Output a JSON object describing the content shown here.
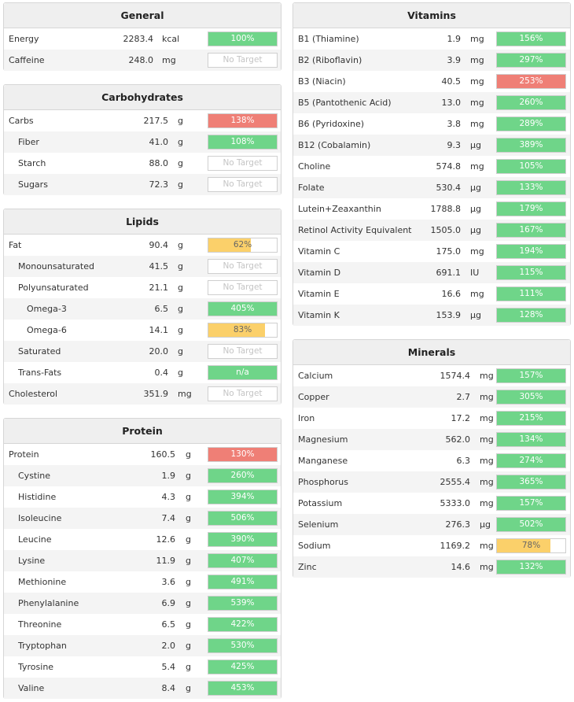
{
  "colors": {
    "green": "#6fd589",
    "red": "#ef7f76",
    "yellow": "#fbd06a"
  },
  "panels": [
    {
      "title": "General",
      "rows": [
        {
          "name": "Energy",
          "value": "2283.4",
          "unit": "kcal",
          "pct": "100%",
          "fill": 1.0,
          "color": "green"
        },
        {
          "name": "Caffeine",
          "value": "248.0",
          "unit": "mg",
          "pct": "No Target",
          "fill": 0,
          "color": "none"
        }
      ]
    },
    {
      "title": "Carbohydrates",
      "rows": [
        {
          "name": "Carbs",
          "value": "217.5",
          "unit": "g",
          "pct": "138%",
          "fill": 1.0,
          "color": "red"
        },
        {
          "name": "Fiber",
          "value": "41.0",
          "unit": "g",
          "pct": "108%",
          "fill": 1.0,
          "color": "green",
          "indent": 1
        },
        {
          "name": "Starch",
          "value": "88.0",
          "unit": "g",
          "pct": "No Target",
          "fill": 0,
          "color": "none",
          "indent": 1
        },
        {
          "name": "Sugars",
          "value": "72.3",
          "unit": "g",
          "pct": "No Target",
          "fill": 0,
          "color": "none",
          "indent": 1
        }
      ]
    },
    {
      "title": "Lipids",
      "rows": [
        {
          "name": "Fat",
          "value": "90.4",
          "unit": "g",
          "pct": "62%",
          "fill": 0.62,
          "color": "yellow"
        },
        {
          "name": "Monounsaturated",
          "value": "41.5",
          "unit": "g",
          "pct": "No Target",
          "fill": 0,
          "color": "none",
          "indent": 1
        },
        {
          "name": "Polyunsaturated",
          "value": "21.1",
          "unit": "g",
          "pct": "No Target",
          "fill": 0,
          "color": "none",
          "indent": 1
        },
        {
          "name": "Omega-3",
          "value": "6.5",
          "unit": "g",
          "pct": "405%",
          "fill": 1.0,
          "color": "green",
          "indent": 2
        },
        {
          "name": "Omega-6",
          "value": "14.1",
          "unit": "g",
          "pct": "83%",
          "fill": 0.83,
          "color": "yellow",
          "indent": 2
        },
        {
          "name": "Saturated",
          "value": "20.0",
          "unit": "g",
          "pct": "No Target",
          "fill": 0,
          "color": "none",
          "indent": 1
        },
        {
          "name": "Trans-Fats",
          "value": "0.4",
          "unit": "g",
          "pct": "n/a",
          "fill": 1.0,
          "color": "green",
          "indent": 1
        },
        {
          "name": "Cholesterol",
          "value": "351.9",
          "unit": "mg",
          "pct": "No Target",
          "fill": 0,
          "color": "none"
        }
      ]
    },
    {
      "title": "Protein",
      "rows": [
        {
          "name": "Protein",
          "value": "160.5",
          "unit": "g",
          "pct": "130%",
          "fill": 1.0,
          "color": "red"
        },
        {
          "name": "Cystine",
          "value": "1.9",
          "unit": "g",
          "pct": "260%",
          "fill": 1.0,
          "color": "green",
          "indent": 1
        },
        {
          "name": "Histidine",
          "value": "4.3",
          "unit": "g",
          "pct": "394%",
          "fill": 1.0,
          "color": "green",
          "indent": 1
        },
        {
          "name": "Isoleucine",
          "value": "7.4",
          "unit": "g",
          "pct": "506%",
          "fill": 1.0,
          "color": "green",
          "indent": 1
        },
        {
          "name": "Leucine",
          "value": "12.6",
          "unit": "g",
          "pct": "390%",
          "fill": 1.0,
          "color": "green",
          "indent": 1
        },
        {
          "name": "Lysine",
          "value": "11.9",
          "unit": "g",
          "pct": "407%",
          "fill": 1.0,
          "color": "green",
          "indent": 1
        },
        {
          "name": "Methionine",
          "value": "3.6",
          "unit": "g",
          "pct": "491%",
          "fill": 1.0,
          "color": "green",
          "indent": 1
        },
        {
          "name": "Phenylalanine",
          "value": "6.9",
          "unit": "g",
          "pct": "539%",
          "fill": 1.0,
          "color": "green",
          "indent": 1
        },
        {
          "name": "Threonine",
          "value": "6.5",
          "unit": "g",
          "pct": "422%",
          "fill": 1.0,
          "color": "green",
          "indent": 1
        },
        {
          "name": "Tryptophan",
          "value": "2.0",
          "unit": "g",
          "pct": "530%",
          "fill": 1.0,
          "color": "green",
          "indent": 1
        },
        {
          "name": "Tyrosine",
          "value": "5.4",
          "unit": "g",
          "pct": "425%",
          "fill": 1.0,
          "color": "green",
          "indent": 1
        },
        {
          "name": "Valine",
          "value": "8.4",
          "unit": "g",
          "pct": "453%",
          "fill": 1.0,
          "color": "green",
          "indent": 1
        }
      ]
    },
    {
      "title": "Vitamins",
      "rows": [
        {
          "name": "B1 (Thiamine)",
          "value": "1.9",
          "unit": "mg",
          "pct": "156%",
          "fill": 1.0,
          "color": "green"
        },
        {
          "name": "B2 (Riboflavin)",
          "value": "3.9",
          "unit": "mg",
          "pct": "297%",
          "fill": 1.0,
          "color": "green"
        },
        {
          "name": "B3 (Niacin)",
          "value": "40.5",
          "unit": "mg",
          "pct": "253%",
          "fill": 1.0,
          "color": "red"
        },
        {
          "name": "B5 (Pantothenic Acid)",
          "value": "13.0",
          "unit": "mg",
          "pct": "260%",
          "fill": 1.0,
          "color": "green"
        },
        {
          "name": "B6 (Pyridoxine)",
          "value": "3.8",
          "unit": "mg",
          "pct": "289%",
          "fill": 1.0,
          "color": "green"
        },
        {
          "name": "B12 (Cobalamin)",
          "value": "9.3",
          "unit": "µg",
          "pct": "389%",
          "fill": 1.0,
          "color": "green"
        },
        {
          "name": "Choline",
          "value": "574.8",
          "unit": "mg",
          "pct": "105%",
          "fill": 1.0,
          "color": "green"
        },
        {
          "name": "Folate",
          "value": "530.4",
          "unit": "µg",
          "pct": "133%",
          "fill": 1.0,
          "color": "green"
        },
        {
          "name": "Lutein+Zeaxanthin",
          "value": "1788.8",
          "unit": "µg",
          "pct": "179%",
          "fill": 1.0,
          "color": "green"
        },
        {
          "name": "Retinol Activity Equivalent",
          "value": "1505.0",
          "unit": "µg",
          "pct": "167%",
          "fill": 1.0,
          "color": "green"
        },
        {
          "name": "Vitamin C",
          "value": "175.0",
          "unit": "mg",
          "pct": "194%",
          "fill": 1.0,
          "color": "green"
        },
        {
          "name": "Vitamin D",
          "value": "691.1",
          "unit": "IU",
          "pct": "115%",
          "fill": 1.0,
          "color": "green"
        },
        {
          "name": "Vitamin E",
          "value": "16.6",
          "unit": "mg",
          "pct": "111%",
          "fill": 1.0,
          "color": "green"
        },
        {
          "name": "Vitamin K",
          "value": "153.9",
          "unit": "µg",
          "pct": "128%",
          "fill": 1.0,
          "color": "green"
        }
      ]
    },
    {
      "title": "Minerals",
      "rows": [
        {
          "name": "Calcium",
          "value": "1574.4",
          "unit": "mg",
          "pct": "157%",
          "fill": 1.0,
          "color": "green"
        },
        {
          "name": "Copper",
          "value": "2.7",
          "unit": "mg",
          "pct": "305%",
          "fill": 1.0,
          "color": "green"
        },
        {
          "name": "Iron",
          "value": "17.2",
          "unit": "mg",
          "pct": "215%",
          "fill": 1.0,
          "color": "green"
        },
        {
          "name": "Magnesium",
          "value": "562.0",
          "unit": "mg",
          "pct": "134%",
          "fill": 1.0,
          "color": "green"
        },
        {
          "name": "Manganese",
          "value": "6.3",
          "unit": "mg",
          "pct": "274%",
          "fill": 1.0,
          "color": "green"
        },
        {
          "name": "Phosphorus",
          "value": "2555.4",
          "unit": "mg",
          "pct": "365%",
          "fill": 1.0,
          "color": "green"
        },
        {
          "name": "Potassium",
          "value": "5333.0",
          "unit": "mg",
          "pct": "157%",
          "fill": 1.0,
          "color": "green"
        },
        {
          "name": "Selenium",
          "value": "276.3",
          "unit": "µg",
          "pct": "502%",
          "fill": 1.0,
          "color": "green"
        },
        {
          "name": "Sodium",
          "value": "1169.2",
          "unit": "mg",
          "pct": "78%",
          "fill": 0.78,
          "color": "yellow"
        },
        {
          "name": "Zinc",
          "value": "14.6",
          "unit": "mg",
          "pct": "132%",
          "fill": 1.0,
          "color": "green"
        }
      ]
    }
  ]
}
